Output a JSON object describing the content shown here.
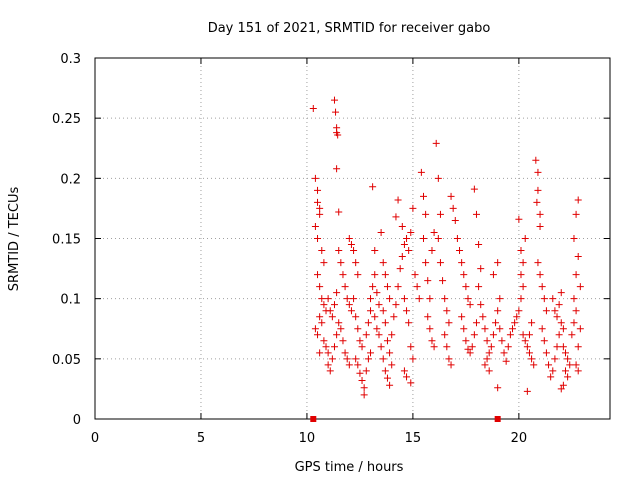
{
  "chart_data": {
    "type": "scatter",
    "title": "Day 151 of 2021, SRMTID for receiver gabo",
    "xlabel": "GPS time / hours",
    "ylabel": "SRMTID / TECUs",
    "xlim": [
      0,
      24.3
    ],
    "ylim": [
      0,
      0.3
    ],
    "x_ticks": [
      0,
      5,
      10,
      15,
      20
    ],
    "x_tick_labels": [
      "0",
      "5",
      "10",
      "15",
      "20"
    ],
    "y_ticks": [
      0,
      0.05,
      0.1,
      0.15,
      0.2,
      0.25,
      0.3
    ],
    "y_tick_labels": [
      "0",
      "0.05",
      "0.1",
      "0.15",
      "0.2",
      "0.25",
      "0.3"
    ],
    "grid": true,
    "marker": "+",
    "color": "#e00000",
    "baseline_markers": {
      "x": [
        10.3,
        19.0
      ],
      "y": 0
    },
    "series": [
      {
        "name": "SRMTID",
        "points": [
          [
            10.3,
            0.258
          ],
          [
            10.4,
            0.2
          ],
          [
            10.5,
            0.19
          ],
          [
            10.5,
            0.18
          ],
          [
            10.6,
            0.175
          ],
          [
            10.6,
            0.17
          ],
          [
            10.4,
            0.16
          ],
          [
            10.5,
            0.15
          ],
          [
            10.7,
            0.14
          ],
          [
            10.8,
            0.13
          ],
          [
            10.5,
            0.12
          ],
          [
            10.6,
            0.11
          ],
          [
            10.7,
            0.1
          ],
          [
            10.8,
            0.095
          ],
          [
            10.9,
            0.09
          ],
          [
            10.6,
            0.085
          ],
          [
            10.7,
            0.08
          ],
          [
            10.4,
            0.075
          ],
          [
            10.5,
            0.07
          ],
          [
            10.6,
            0.055
          ],
          [
            10.8,
            0.065
          ],
          [
            10.9,
            0.06
          ],
          [
            11.0,
            0.055
          ],
          [
            11.0,
            0.045
          ],
          [
            11.1,
            0.04
          ],
          [
            11.2,
            0.05
          ],
          [
            11.3,
            0.06
          ],
          [
            11.4,
            0.07
          ],
          [
            11.5,
            0.08
          ],
          [
            11.0,
            0.1
          ],
          [
            11.1,
            0.09
          ],
          [
            11.2,
            0.085
          ],
          [
            11.3,
            0.095
          ],
          [
            11.4,
            0.105
          ],
          [
            11.3,
            0.265
          ],
          [
            11.35,
            0.255
          ],
          [
            11.4,
            0.242
          ],
          [
            11.4,
            0.238
          ],
          [
            11.45,
            0.236
          ],
          [
            11.4,
            0.208
          ],
          [
            11.5,
            0.172
          ],
          [
            11.5,
            0.14
          ],
          [
            11.6,
            0.13
          ],
          [
            11.7,
            0.12
          ],
          [
            11.8,
            0.11
          ],
          [
            11.9,
            0.1
          ],
          [
            12.0,
            0.095
          ],
          [
            12.1,
            0.09
          ],
          [
            11.6,
            0.075
          ],
          [
            11.7,
            0.065
          ],
          [
            11.8,
            0.055
          ],
          [
            11.9,
            0.05
          ],
          [
            12.0,
            0.045
          ],
          [
            12.0,
            0.15
          ],
          [
            12.1,
            0.145
          ],
          [
            12.2,
            0.14
          ],
          [
            12.3,
            0.13
          ],
          [
            12.4,
            0.12
          ],
          [
            12.2,
            0.1
          ],
          [
            12.3,
            0.085
          ],
          [
            12.4,
            0.075
          ],
          [
            12.5,
            0.065
          ],
          [
            12.6,
            0.06
          ],
          [
            12.3,
            0.05
          ],
          [
            12.4,
            0.045
          ],
          [
            12.5,
            0.038
          ],
          [
            12.6,
            0.032
          ],
          [
            12.7,
            0.026
          ],
          [
            12.7,
            0.02
          ],
          [
            12.8,
            0.04
          ],
          [
            12.9,
            0.05
          ],
          [
            13.0,
            0.055
          ],
          [
            12.8,
            0.07
          ],
          [
            12.9,
            0.08
          ],
          [
            13.0,
            0.09
          ],
          [
            13.0,
            0.1
          ],
          [
            13.1,
            0.11
          ],
          [
            13.2,
            0.12
          ],
          [
            13.3,
            0.105
          ],
          [
            13.4,
            0.095
          ],
          [
            13.2,
            0.085
          ],
          [
            13.3,
            0.075
          ],
          [
            13.4,
            0.07
          ],
          [
            13.5,
            0.06
          ],
          [
            13.6,
            0.05
          ],
          [
            13.1,
            0.193
          ],
          [
            13.2,
            0.14
          ],
          [
            13.5,
            0.155
          ],
          [
            13.6,
            0.13
          ],
          [
            13.7,
            0.12
          ],
          [
            13.8,
            0.11
          ],
          [
            13.9,
            0.1
          ],
          [
            13.6,
            0.09
          ],
          [
            13.7,
            0.08
          ],
          [
            13.8,
            0.065
          ],
          [
            13.9,
            0.055
          ],
          [
            14.0,
            0.045
          ],
          [
            13.7,
            0.04
          ],
          [
            13.8,
            0.034
          ],
          [
            13.9,
            0.028
          ],
          [
            14.0,
            0.07
          ],
          [
            14.1,
            0.085
          ],
          [
            14.2,
            0.095
          ],
          [
            14.3,
            0.11
          ],
          [
            14.4,
            0.125
          ],
          [
            14.5,
            0.135
          ],
          [
            14.6,
            0.145
          ],
          [
            14.3,
            0.182
          ],
          [
            14.2,
            0.168
          ],
          [
            14.5,
            0.16
          ],
          [
            14.7,
            0.15
          ],
          [
            14.8,
            0.14
          ],
          [
            14.9,
            0.155
          ],
          [
            15.0,
            0.175
          ],
          [
            14.6,
            0.1
          ],
          [
            14.7,
            0.09
          ],
          [
            14.8,
            0.08
          ],
          [
            14.9,
            0.06
          ],
          [
            15.0,
            0.05
          ],
          [
            14.6,
            0.04
          ],
          [
            14.7,
            0.035
          ],
          [
            14.9,
            0.03
          ],
          [
            15.1,
            0.12
          ],
          [
            15.2,
            0.11
          ],
          [
            15.3,
            0.1
          ],
          [
            15.4,
            0.205
          ],
          [
            15.5,
            0.185
          ],
          [
            15.6,
            0.17
          ],
          [
            15.5,
            0.15
          ],
          [
            15.6,
            0.13
          ],
          [
            15.7,
            0.115
          ],
          [
            15.8,
            0.1
          ],
          [
            15.7,
            0.085
          ],
          [
            15.8,
            0.075
          ],
          [
            15.9,
            0.065
          ],
          [
            16.0,
            0.06
          ],
          [
            15.9,
            0.14
          ],
          [
            16.0,
            0.155
          ],
          [
            16.1,
            0.229
          ],
          [
            16.2,
            0.2
          ],
          [
            16.3,
            0.17
          ],
          [
            16.2,
            0.15
          ],
          [
            16.3,
            0.13
          ],
          [
            16.4,
            0.115
          ],
          [
            16.5,
            0.1
          ],
          [
            16.6,
            0.09
          ],
          [
            16.7,
            0.08
          ],
          [
            16.5,
            0.07
          ],
          [
            16.6,
            0.06
          ],
          [
            16.7,
            0.05
          ],
          [
            16.8,
            0.045
          ],
          [
            16.8,
            0.185
          ],
          [
            16.9,
            0.175
          ],
          [
            17.0,
            0.165
          ],
          [
            17.1,
            0.15
          ],
          [
            17.2,
            0.14
          ],
          [
            17.3,
            0.13
          ],
          [
            17.4,
            0.12
          ],
          [
            17.5,
            0.11
          ],
          [
            17.6,
            0.1
          ],
          [
            17.7,
            0.095
          ],
          [
            17.3,
            0.085
          ],
          [
            17.4,
            0.075
          ],
          [
            17.5,
            0.065
          ],
          [
            17.6,
            0.058
          ],
          [
            17.7,
            0.055
          ],
          [
            17.8,
            0.06
          ],
          [
            17.9,
            0.07
          ],
          [
            18.0,
            0.08
          ],
          [
            17.9,
            0.191
          ],
          [
            18.0,
            0.17
          ],
          [
            18.1,
            0.145
          ],
          [
            18.2,
            0.125
          ],
          [
            18.1,
            0.11
          ],
          [
            18.2,
            0.095
          ],
          [
            18.3,
            0.085
          ],
          [
            18.4,
            0.075
          ],
          [
            18.5,
            0.065
          ],
          [
            18.6,
            0.055
          ],
          [
            18.5,
            0.05
          ],
          [
            18.4,
            0.045
          ],
          [
            18.6,
            0.04
          ],
          [
            18.7,
            0.06
          ],
          [
            18.8,
            0.07
          ],
          [
            18.9,
            0.08
          ],
          [
            19.0,
            0.09
          ],
          [
            19.1,
            0.1
          ],
          [
            19.0,
            0.13
          ],
          [
            18.8,
            0.12
          ],
          [
            19.1,
            0.075
          ],
          [
            19.2,
            0.065
          ],
          [
            19.3,
            0.055
          ],
          [
            19.4,
            0.048
          ],
          [
            19.0,
            0.026
          ],
          [
            19.5,
            0.06
          ],
          [
            19.6,
            0.07
          ],
          [
            19.7,
            0.075
          ],
          [
            19.8,
            0.08
          ],
          [
            19.9,
            0.085
          ],
          [
            20.0,
            0.09
          ],
          [
            20.1,
            0.1
          ],
          [
            20.2,
            0.11
          ],
          [
            20.1,
            0.12
          ],
          [
            20.2,
            0.13
          ],
          [
            20.0,
            0.166
          ],
          [
            20.1,
            0.14
          ],
          [
            20.3,
            0.15
          ],
          [
            20.2,
            0.07
          ],
          [
            20.3,
            0.065
          ],
          [
            20.4,
            0.06
          ],
          [
            20.5,
            0.07
          ],
          [
            20.6,
            0.08
          ],
          [
            20.4,
            0.023
          ],
          [
            20.5,
            0.055
          ],
          [
            20.6,
            0.05
          ],
          [
            20.7,
            0.045
          ],
          [
            20.8,
            0.215
          ],
          [
            20.9,
            0.205
          ],
          [
            20.9,
            0.19
          ],
          [
            20.85,
            0.18
          ],
          [
            21.0,
            0.17
          ],
          [
            21.0,
            0.16
          ],
          [
            20.9,
            0.13
          ],
          [
            21.0,
            0.12
          ],
          [
            21.1,
            0.11
          ],
          [
            21.2,
            0.1
          ],
          [
            21.3,
            0.09
          ],
          [
            21.1,
            0.075
          ],
          [
            21.2,
            0.065
          ],
          [
            21.3,
            0.055
          ],
          [
            21.4,
            0.045
          ],
          [
            21.5,
            0.035
          ],
          [
            21.6,
            0.04
          ],
          [
            21.7,
            0.05
          ],
          [
            21.8,
            0.06
          ],
          [
            21.9,
            0.07
          ],
          [
            22.0,
            0.08
          ],
          [
            22.1,
            0.075
          ],
          [
            21.6,
            0.1
          ],
          [
            21.7,
            0.09
          ],
          [
            21.8,
            0.085
          ],
          [
            21.9,
            0.095
          ],
          [
            22.0,
            0.105
          ],
          [
            22.1,
            0.06
          ],
          [
            22.2,
            0.055
          ],
          [
            22.3,
            0.05
          ],
          [
            22.4,
            0.045
          ],
          [
            22.2,
            0.04
          ],
          [
            22.3,
            0.035
          ],
          [
            22.1,
            0.028
          ],
          [
            22.0,
            0.025
          ],
          [
            22.5,
            0.07
          ],
          [
            22.6,
            0.08
          ],
          [
            22.7,
            0.09
          ],
          [
            22.6,
            0.1
          ],
          [
            22.7,
            0.12
          ],
          [
            22.8,
            0.135
          ],
          [
            22.6,
            0.15
          ],
          [
            22.7,
            0.17
          ],
          [
            22.8,
            0.182
          ],
          [
            22.9,
            0.11
          ],
          [
            22.9,
            0.075
          ],
          [
            22.8,
            0.06
          ],
          [
            22.7,
            0.045
          ],
          [
            22.8,
            0.04
          ]
        ]
      }
    ]
  }
}
